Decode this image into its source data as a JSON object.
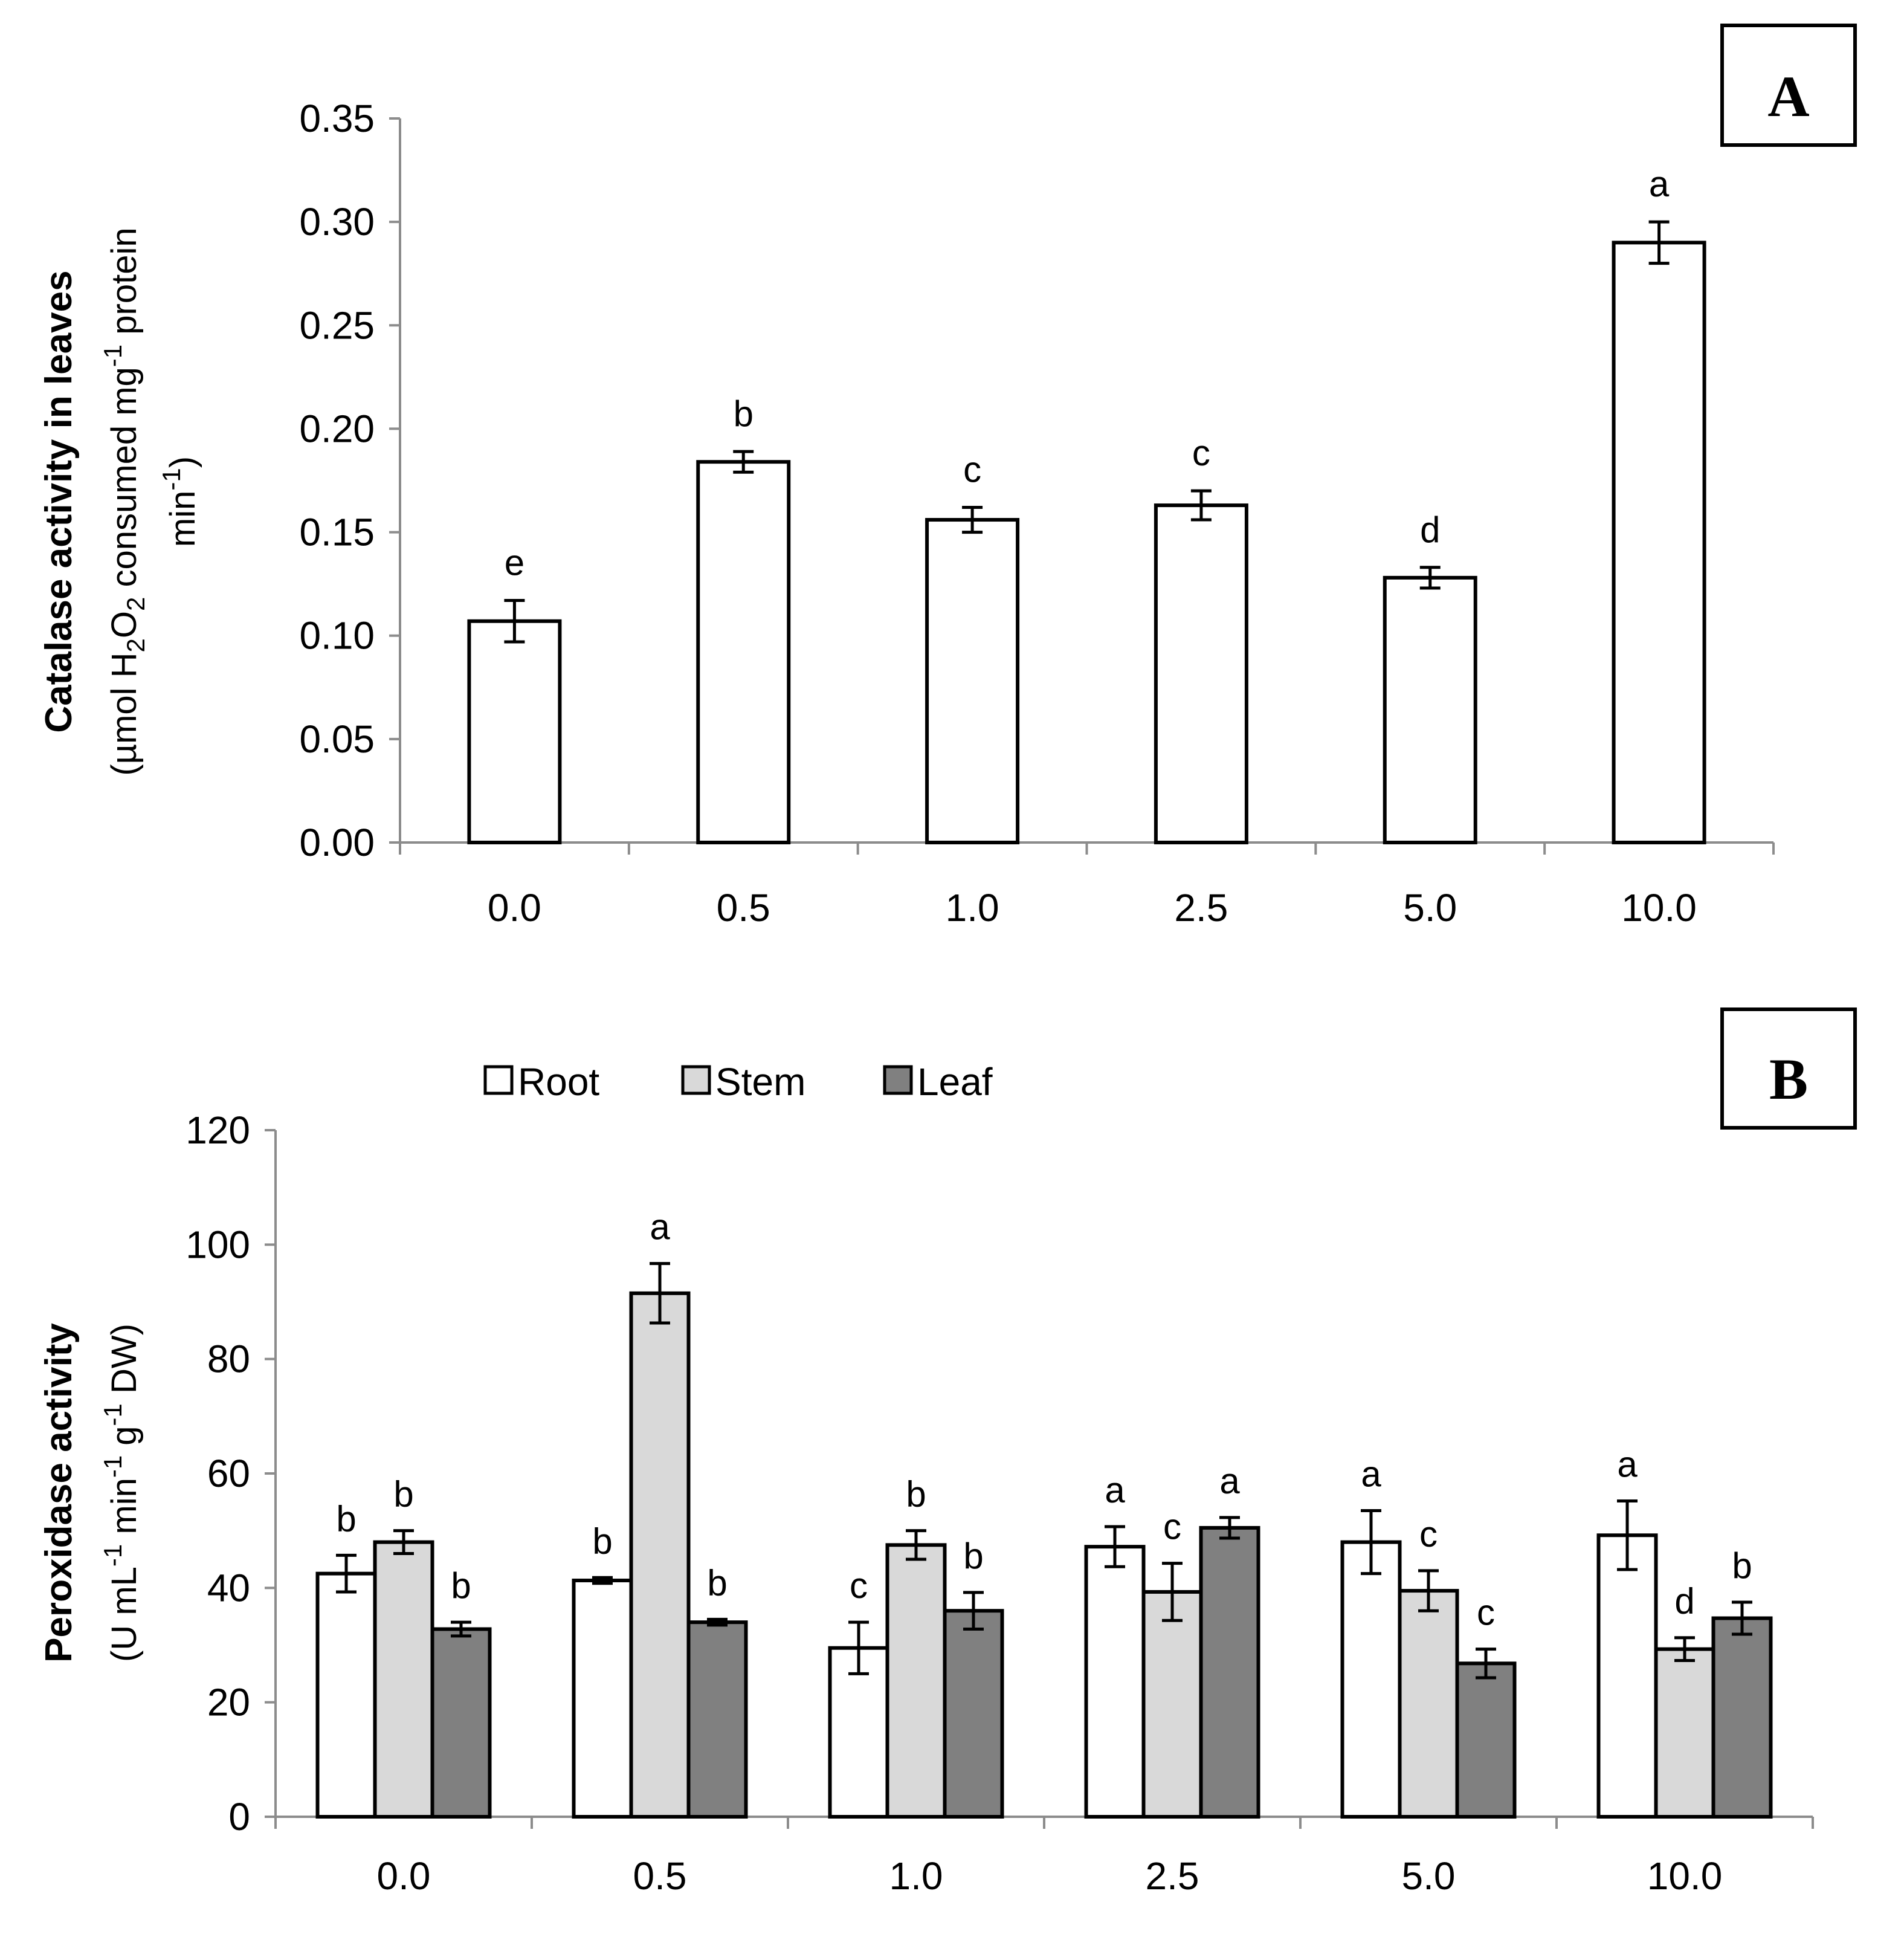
{
  "chart_data": [
    {
      "panel": "A",
      "type": "bar",
      "title": "",
      "xlabel": "",
      "ylabel_title": "Catalase activity in leaves",
      "ylabel_units": {
        "open": "(µmol H",
        "sub1": "2",
        "mid1": "O",
        "sub2": "2",
        "mid2": " consumed mg",
        "sup1": "-1",
        "mid3": " protein",
        "line2": "min",
        "sup2": "-1",
        "close": ")"
      },
      "categories": [
        "0.0",
        "0.5",
        "1.0",
        "2.5",
        "5.0",
        "10.0"
      ],
      "values": [
        0.107,
        0.184,
        0.156,
        0.163,
        0.128,
        0.29
      ],
      "errors": [
        0.01,
        0.005,
        0.006,
        0.007,
        0.005,
        0.01
      ],
      "letters": [
        "e",
        "b",
        "c",
        "c",
        "d",
        "a"
      ],
      "ylim": [
        0,
        0.35
      ],
      "yticks": [
        0,
        0.05,
        0.1,
        0.15,
        0.2,
        0.25,
        0.3,
        0.35
      ],
      "ytick_labels": [
        "0.00",
        "0.05",
        "0.10",
        "0.15",
        "0.20",
        "0.25",
        "0.30",
        "0.35"
      ],
      "bar_color": "#ffffff"
    },
    {
      "panel": "B",
      "type": "bar",
      "title": "",
      "xlabel": "",
      "ylabel_title": "Peroxidase activity",
      "ylabel_units": {
        "p1": "(U mL",
        "s1": "-1",
        "p2": " min",
        "s2": "-1",
        "p3": " g",
        "s3": "-1",
        "p4": " DW)"
      },
      "categories": [
        "0.0",
        "0.5",
        "1.0",
        "2.5",
        "5.0",
        "10.0"
      ],
      "series": [
        {
          "name": "Root",
          "color": "#ffffff",
          "values": [
            42.5,
            41.3,
            29.5,
            47.2,
            48.0,
            49.2
          ],
          "errors": [
            3.2,
            0.5,
            4.5,
            3.5,
            5.5,
            6.0
          ],
          "letters": [
            "b",
            "b",
            "c",
            "a",
            "a",
            "a"
          ]
        },
        {
          "name": "Stem",
          "color": "#d9d9d9",
          "values": [
            48.0,
            91.5,
            47.5,
            39.3,
            39.5,
            29.3
          ],
          "errors": [
            2.0,
            5.2,
            2.5,
            5.0,
            3.5,
            2.0
          ],
          "letters": [
            "b",
            "a",
            "b",
            "c",
            "c",
            "d"
          ]
        },
        {
          "name": "Leaf",
          "color": "#808080",
          "values": [
            32.8,
            34.0,
            36.0,
            50.5,
            26.8,
            34.7
          ],
          "errors": [
            1.2,
            0.5,
            3.2,
            1.8,
            2.5,
            2.8
          ],
          "letters": [
            "b",
            "b",
            "b",
            "a",
            "c",
            "b"
          ]
        }
      ],
      "ylim": [
        0,
        120
      ],
      "yticks": [
        0,
        20,
        40,
        60,
        80,
        100,
        120
      ],
      "ytick_labels": [
        "0",
        "20",
        "40",
        "60",
        "80",
        "100",
        "120"
      ],
      "legend_position": "top-left"
    }
  ]
}
